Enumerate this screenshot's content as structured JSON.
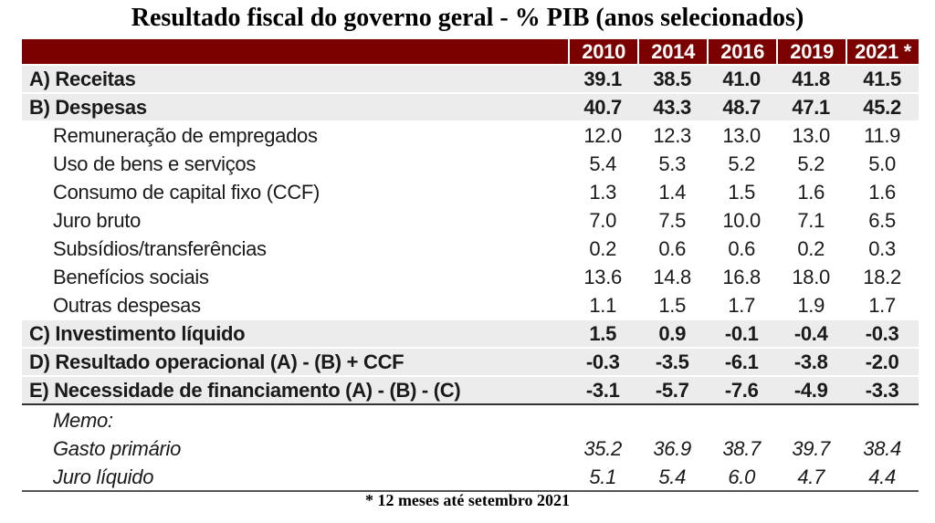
{
  "title": "Resultado fiscal do governo geral - % PIB (anos selecionados)",
  "header_color": "#7b0000",
  "years": [
    "2010",
    "2014",
    "2016",
    "2019",
    "2021 *"
  ],
  "rows": [
    {
      "label": "A) Receitas",
      "values": [
        "39.1",
        "38.5",
        "41.0",
        "41.8",
        "41.5"
      ]
    },
    {
      "label": "B) Despesas",
      "values": [
        "40.7",
        "43.3",
        "48.7",
        "47.1",
        "45.2"
      ]
    },
    {
      "label": "Remuneração de empregados",
      "values": [
        "12.0",
        "12.3",
        "13.0",
        "13.0",
        "11.9"
      ]
    },
    {
      "label": "Uso de bens e serviços",
      "values": [
        "5.4",
        "5.3",
        "5.2",
        "5.2",
        "5.0"
      ]
    },
    {
      "label": "Consumo de capital fixo (CCF)",
      "values": [
        "1.3",
        "1.4",
        "1.5",
        "1.6",
        "1.6"
      ]
    },
    {
      "label": "Juro bruto",
      "values": [
        "7.0",
        "7.5",
        "10.0",
        "7.1",
        "6.5"
      ]
    },
    {
      "label": "Subsídios/transferências",
      "values": [
        "0.2",
        "0.6",
        "0.6",
        "0.2",
        "0.3"
      ]
    },
    {
      "label": "Benefícios sociais",
      "values": [
        "13.6",
        "14.8",
        "16.8",
        "18.0",
        "18.2"
      ]
    },
    {
      "label": "Outras despesas",
      "values": [
        "1.1",
        "1.5",
        "1.7",
        "1.9",
        "1.7"
      ]
    },
    {
      "label": "C) Investimento líquido",
      "values": [
        "1.5",
        "0.9",
        "-0.1",
        "-0.4",
        "-0.3"
      ]
    },
    {
      "label": "D) Resultado operacional (A) - (B) + CCF",
      "values": [
        "-0.3",
        "-3.5",
        "-6.1",
        "-3.8",
        "-2.0"
      ]
    },
    {
      "label": "E) Necessidade de financiamento (A) - (B) - (C)",
      "values": [
        "-3.1",
        "-5.7",
        "-7.6",
        "-4.9",
        "-3.3"
      ]
    },
    {
      "label": "Memo:",
      "values": [
        "",
        "",
        "",
        "",
        ""
      ]
    },
    {
      "label": "Gasto primário",
      "values": [
        "35.2",
        "36.9",
        "38.7",
        "39.7",
        "38.4"
      ]
    },
    {
      "label": "Juro líquido",
      "values": [
        "5.1",
        "5.4",
        "6.0",
        "4.7",
        "4.4"
      ]
    }
  ],
  "footnote": "* 12 meses até setembro 2021"
}
